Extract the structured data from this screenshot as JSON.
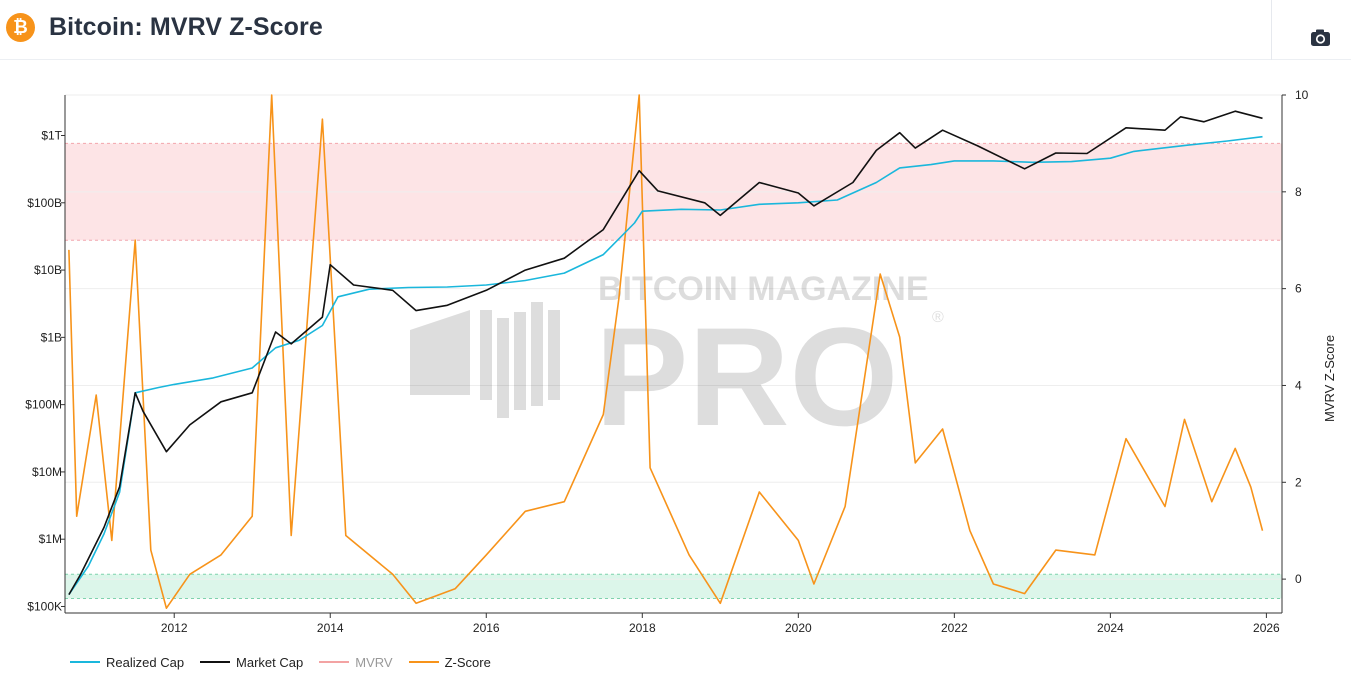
{
  "header": {
    "logo_glyph": "₿",
    "title": "Bitcoin: MVRV Z-Score",
    "camera_icon": "camera-icon"
  },
  "watermark": {
    "line1": "BITCOIN MAGAZINE",
    "line2": "PRO",
    "mark": "®"
  },
  "colors": {
    "realized_cap": "#1ab7dc",
    "market_cap": "#111111",
    "mvrv": "#f3a3a3",
    "z_score": "#f7931a",
    "upper_band": "#fde4e6",
    "lower_band": "#dcf6ea"
  },
  "chart_data": {
    "type": "line",
    "title": "Bitcoin: MVRV Z-Score",
    "xlabel": "",
    "x_ticks": [
      "2012",
      "2014",
      "2016",
      "2018",
      "2020",
      "2022",
      "2024",
      "2026"
    ],
    "x_range": [
      2010.6,
      2026.2
    ],
    "left_axis": {
      "scale": "log",
      "ticks": [
        {
          "label": "$100K",
          "value": 100000
        },
        {
          "label": "$1M",
          "value": 1000000
        },
        {
          "label": "$10M",
          "value": 10000000
        },
        {
          "label": "$100M",
          "value": 100000000
        },
        {
          "label": "$1B",
          "value": 1000000000
        },
        {
          "label": "$10B",
          "value": 10000000000
        },
        {
          "label": "$100B",
          "value": 100000000000
        },
        {
          "label": "$1T",
          "value": 1000000000000
        }
      ],
      "range": [
        80000,
        4000000000000
      ]
    },
    "right_axis": {
      "label": "MVRV Z-Score",
      "ticks": [
        "0",
        "2",
        "4",
        "6",
        "8",
        "10"
      ],
      "range": [
        -0.7,
        10
      ]
    },
    "bands": [
      {
        "name": "overvalued",
        "z_from": 7,
        "z_to": 9
      },
      {
        "name": "undervalued",
        "z_from": -0.4,
        "z_to": 0.1
      }
    ],
    "series": [
      {
        "name": "Realized Cap",
        "axis": "left",
        "points": [
          [
            2010.65,
            150000
          ],
          [
            2010.9,
            400000
          ],
          [
            2011.1,
            1200000
          ],
          [
            2011.3,
            5000000
          ],
          [
            2011.5,
            150000000
          ],
          [
            2011.8,
            180000000
          ],
          [
            2012.0,
            200000000
          ],
          [
            2012.5,
            250000000
          ],
          [
            2013.0,
            350000000
          ],
          [
            2013.3,
            700000000
          ],
          [
            2013.6,
            900000000
          ],
          [
            2013.9,
            1500000000
          ],
          [
            2014.1,
            4000000000
          ],
          [
            2014.5,
            5200000000
          ],
          [
            2015.0,
            5500000000
          ],
          [
            2015.5,
            5600000000
          ],
          [
            2016.0,
            6000000000
          ],
          [
            2016.5,
            7000000000
          ],
          [
            2017.0,
            9000000000
          ],
          [
            2017.5,
            17000000000
          ],
          [
            2017.9,
            50000000000
          ],
          [
            2018.0,
            75000000000
          ],
          [
            2018.5,
            80000000000
          ],
          [
            2019.0,
            78000000000
          ],
          [
            2019.5,
            95000000000
          ],
          [
            2020.0,
            100000000000
          ],
          [
            2020.5,
            110000000000
          ],
          [
            2021.0,
            200000000000
          ],
          [
            2021.3,
            330000000000
          ],
          [
            2021.7,
            370000000000
          ],
          [
            2022.0,
            420000000000
          ],
          [
            2022.5,
            420000000000
          ],
          [
            2023.0,
            400000000000
          ],
          [
            2023.5,
            410000000000
          ],
          [
            2024.0,
            460000000000
          ],
          [
            2024.3,
            580000000000
          ],
          [
            2025.0,
            720000000000
          ],
          [
            2025.5,
            830000000000
          ],
          [
            2025.95,
            960000000000
          ]
        ]
      },
      {
        "name": "Market Cap",
        "axis": "left",
        "points": [
          [
            2010.65,
            150000
          ],
          [
            2010.8,
            300000
          ],
          [
            2011.1,
            1500000
          ],
          [
            2011.3,
            6000000
          ],
          [
            2011.5,
            150000000
          ],
          [
            2011.6,
            80000000
          ],
          [
            2011.9,
            20000000
          ],
          [
            2012.2,
            50000000
          ],
          [
            2012.6,
            110000000
          ],
          [
            2013.0,
            150000000
          ],
          [
            2013.3,
            1200000000
          ],
          [
            2013.5,
            800000000
          ],
          [
            2013.9,
            2000000000
          ],
          [
            2014.0,
            12000000000
          ],
          [
            2014.3,
            6000000000
          ],
          [
            2014.8,
            5000000000
          ],
          [
            2015.1,
            2500000000
          ],
          [
            2015.5,
            3000000000
          ],
          [
            2016.0,
            5000000000
          ],
          [
            2016.5,
            10000000000
          ],
          [
            2017.0,
            15000000000
          ],
          [
            2017.5,
            40000000000
          ],
          [
            2017.96,
            300000000000
          ],
          [
            2018.2,
            150000000000
          ],
          [
            2018.8,
            100000000000
          ],
          [
            2019.0,
            65000000000
          ],
          [
            2019.5,
            200000000000
          ],
          [
            2020.0,
            140000000000
          ],
          [
            2020.2,
            90000000000
          ],
          [
            2020.7,
            200000000000
          ],
          [
            2021.0,
            600000000000
          ],
          [
            2021.3,
            1100000000000
          ],
          [
            2021.5,
            650000000000
          ],
          [
            2021.85,
            1200000000000
          ],
          [
            2022.3,
            700000000000
          ],
          [
            2022.9,
            320000000000
          ],
          [
            2023.3,
            550000000000
          ],
          [
            2023.7,
            540000000000
          ],
          [
            2024.2,
            1300000000000
          ],
          [
            2024.7,
            1200000000000
          ],
          [
            2024.9,
            1900000000000
          ],
          [
            2025.2,
            1600000000000
          ],
          [
            2025.6,
            2300000000000
          ],
          [
            2025.95,
            1800000000000
          ]
        ]
      },
      {
        "name": "MVRV",
        "axis": "right",
        "visible": false,
        "points": []
      },
      {
        "name": "Z-Score",
        "axis": "right",
        "points": [
          [
            2010.65,
            6.8
          ],
          [
            2010.75,
            1.3
          ],
          [
            2011.0,
            3.8
          ],
          [
            2011.2,
            0.8
          ],
          [
            2011.5,
            7.0
          ],
          [
            2011.7,
            0.6
          ],
          [
            2011.9,
            -0.6
          ],
          [
            2012.2,
            0.1
          ],
          [
            2012.6,
            0.5
          ],
          [
            2013.0,
            1.3
          ],
          [
            2013.25,
            10.0
          ],
          [
            2013.5,
            0.9
          ],
          [
            2013.9,
            9.5
          ],
          [
            2014.2,
            0.9
          ],
          [
            2014.8,
            0.1
          ],
          [
            2015.1,
            -0.5
          ],
          [
            2015.6,
            -0.2
          ],
          [
            2016.0,
            0.5
          ],
          [
            2016.5,
            1.4
          ],
          [
            2017.0,
            1.6
          ],
          [
            2017.5,
            3.4
          ],
          [
            2017.7,
            5.8
          ],
          [
            2017.96,
            10.0
          ],
          [
            2018.1,
            2.3
          ],
          [
            2018.6,
            0.5
          ],
          [
            2019.0,
            -0.5
          ],
          [
            2019.5,
            1.8
          ],
          [
            2020.0,
            0.8
          ],
          [
            2020.2,
            -0.1
          ],
          [
            2020.6,
            1.5
          ],
          [
            2021.05,
            6.3
          ],
          [
            2021.3,
            5.0
          ],
          [
            2021.5,
            2.4
          ],
          [
            2021.85,
            3.1
          ],
          [
            2022.2,
            1.0
          ],
          [
            2022.5,
            -0.1
          ],
          [
            2022.9,
            -0.3
          ],
          [
            2023.3,
            0.6
          ],
          [
            2023.8,
            0.5
          ],
          [
            2024.2,
            2.9
          ],
          [
            2024.7,
            1.5
          ],
          [
            2024.95,
            3.3
          ],
          [
            2025.3,
            1.6
          ],
          [
            2025.6,
            2.7
          ],
          [
            2025.8,
            1.9
          ],
          [
            2025.95,
            1.0
          ]
        ]
      }
    ],
    "legend": [
      "Realized Cap",
      "Market Cap",
      "MVRV",
      "Z-Score"
    ],
    "legend_position": "bottom-left"
  }
}
